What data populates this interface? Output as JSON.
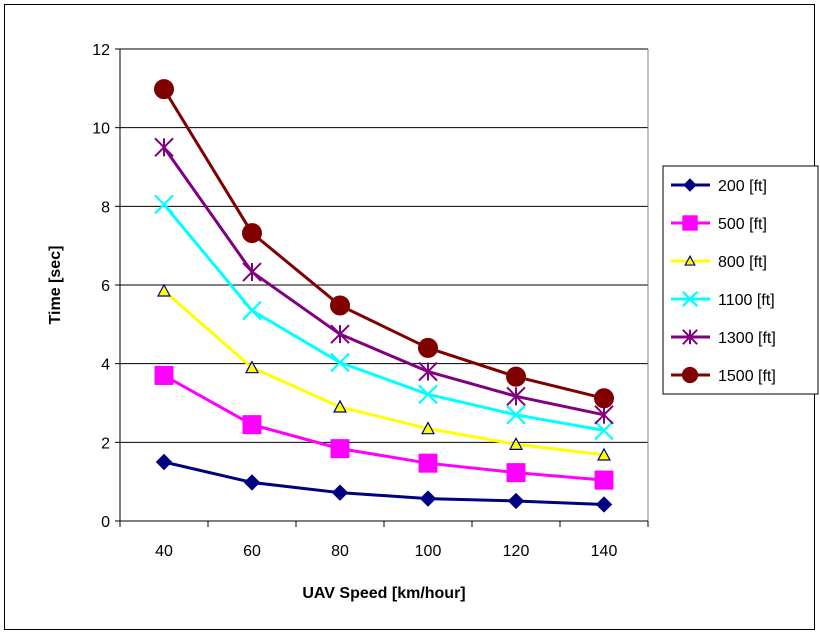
{
  "chart_data": {
    "type": "line",
    "title": "",
    "xlabel": "UAV Speed [km/hour]",
    "ylabel": "Time [sec]",
    "x": [
      40,
      60,
      80,
      100,
      120,
      140
    ],
    "x_tick_labels": [
      "40",
      "60",
      "80",
      "100",
      "120",
      "140"
    ],
    "ylim": [
      0,
      12
    ],
    "y_ticks": [
      0,
      2,
      4,
      6,
      8,
      10,
      12
    ],
    "y_tick_labels": [
      "0",
      "2",
      "4",
      "6",
      "8",
      "10",
      "12"
    ],
    "grid": "horizontal",
    "legend_position": "right",
    "series": [
      {
        "name": "200 [ft]",
        "color": "#000080",
        "marker": "diamond",
        "values": [
          1.5,
          0.98,
          0.72,
          0.57,
          0.51,
          0.42
        ]
      },
      {
        "name": "500 [ft]",
        "color": "#ff00ff",
        "marker": "square",
        "values": [
          3.7,
          2.45,
          1.84,
          1.47,
          1.23,
          1.04
        ]
      },
      {
        "name": "800 [ft]",
        "color": "#ffff00",
        "marker": "triangle",
        "values": [
          5.85,
          3.9,
          2.9,
          2.35,
          1.95,
          1.68
        ]
      },
      {
        "name": "1100 [ft]",
        "color": "#00ffff",
        "marker": "x",
        "values": [
          8.05,
          5.35,
          4.03,
          3.22,
          2.7,
          2.3
        ]
      },
      {
        "name": "1300 [ft]",
        "color": "#800080",
        "marker": "star",
        "values": [
          9.5,
          6.33,
          4.75,
          3.8,
          3.17,
          2.7
        ]
      },
      {
        "name": "1500 [ft]",
        "color": "#800000",
        "marker": "circle",
        "values": [
          10.98,
          7.32,
          5.48,
          4.4,
          3.67,
          3.12
        ]
      }
    ]
  }
}
